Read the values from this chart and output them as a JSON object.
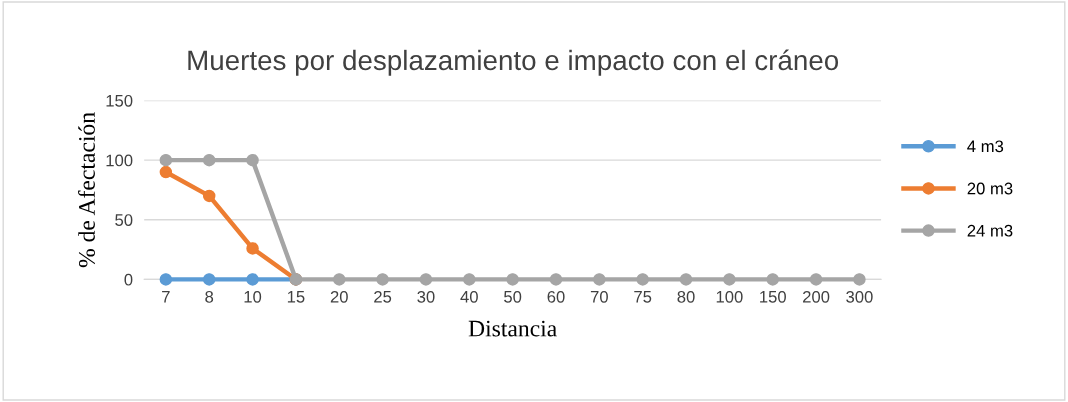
{
  "chart_data": {
    "type": "line",
    "title": "Muertes por desplazamiento e impacto con el cráneo",
    "xlabel": "Distancia",
    "ylabel": "% de Afectación",
    "categories": [
      "7",
      "8",
      "10",
      "15",
      "20",
      "25",
      "30",
      "40",
      "50",
      "60",
      "70",
      "75",
      "80",
      "100",
      "150",
      "200",
      "300"
    ],
    "series": [
      {
        "name": "4 m3",
        "color": "#5b9bd5",
        "values": [
          0,
          0,
          0,
          0,
          null,
          null,
          null,
          null,
          null,
          null,
          null,
          null,
          null,
          null,
          null,
          null,
          null
        ]
      },
      {
        "name": "20 m3",
        "color": "#ed7d31",
        "values": [
          90,
          70,
          26,
          0,
          null,
          null,
          null,
          null,
          null,
          null,
          null,
          null,
          null,
          null,
          null,
          null,
          null
        ]
      },
      {
        "name": "24 m3",
        "color": "#a5a5a5",
        "values": [
          100,
          100,
          100,
          0,
          0,
          0,
          0,
          0,
          0,
          0,
          0,
          0,
          0,
          0,
          0,
          0,
          0
        ]
      }
    ],
    "ylim": [
      0,
      150
    ],
    "yticks": [
      0,
      50,
      100,
      150
    ],
    "grid": "y",
    "legend": "right",
    "marker": "circle",
    "line_style": "solid"
  }
}
